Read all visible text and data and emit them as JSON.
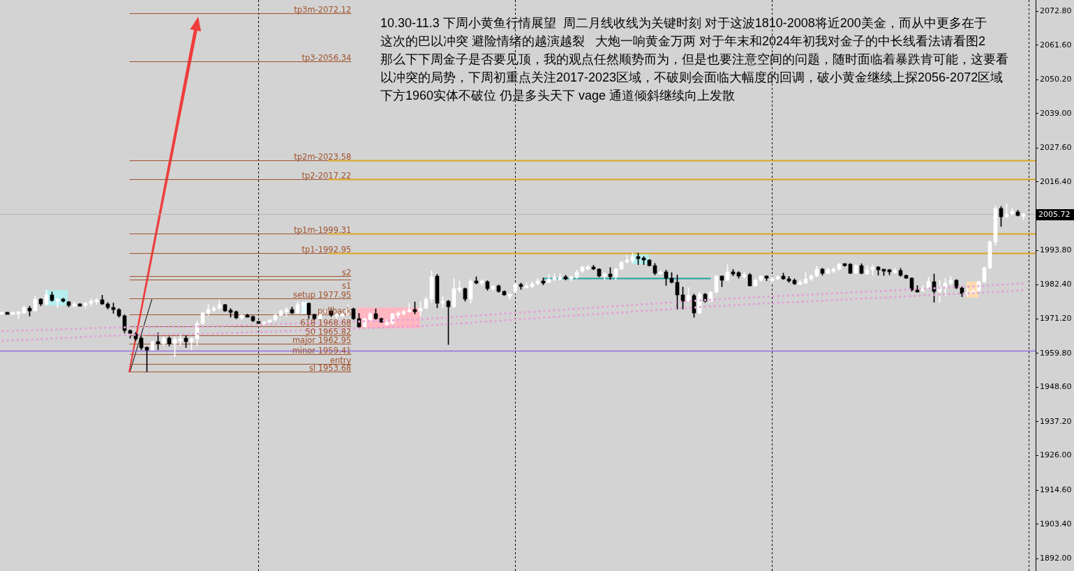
{
  "chart_data": {
    "type": "candlestick",
    "categories": [
      null,
      null,
      null,
      null,
      null,
      null,
      null,
      null,
      null,
      null,
      null,
      null,
      null,
      null,
      null,
      null,
      null,
      null,
      null,
      null,
      null,
      null,
      null,
      null,
      null,
      null,
      null,
      null,
      null,
      null,
      null,
      null,
      null,
      null,
      null,
      null,
      null,
      null,
      null,
      null,
      null,
      null,
      null,
      null,
      null,
      null,
      null,
      null,
      null,
      null,
      null,
      null,
      null,
      null,
      null,
      null,
      null,
      null,
      null,
      null,
      null,
      null,
      null,
      null,
      null,
      null,
      null,
      null,
      null,
      null,
      null,
      null,
      null,
      null,
      null,
      null,
      null,
      null,
      null,
      null,
      null,
      null,
      null,
      null,
      null,
      null,
      null,
      null,
      null,
      null,
      null,
      null,
      null,
      null,
      null,
      null,
      null,
      null,
      null,
      null,
      null,
      null,
      null,
      null,
      null,
      null,
      null,
      null,
      null,
      null,
      null,
      null,
      null,
      null,
      null,
      null,
      null,
      null,
      null,
      null,
      null,
      null,
      null,
      null,
      null,
      null,
      null,
      null,
      null,
      null,
      null,
      null,
      null,
      null,
      null,
      null,
      null,
      null,
      null,
      null,
      null,
      null,
      null,
      null,
      null,
      null,
      null,
      null,
      null,
      null,
      null,
      null,
      null,
      null,
      null,
      null,
      null,
      null,
      null,
      null,
      null,
      null,
      null,
      null,
      null,
      null,
      null,
      null,
      null,
      null,
      null,
      null,
      null,
      null,
      null,
      null,
      null,
      null,
      null,
      null,
      null,
      null,
      null,
      null
    ],
    "ohlc": [
      [
        1973.1,
        1973.4,
        1972.9,
        1973.2
      ],
      [
        1973.3,
        1973.4,
        1972.8,
        1972.9
      ],
      [
        1972.9,
        1973.4,
        1972.8,
        1973.3
      ],
      [
        1973.2,
        1973.6,
        1971.2,
        1973.4
      ],
      [
        1973.2,
        1975.5,
        1973.0,
        1975.0
      ],
      [
        1974.8,
        1975.4,
        1972.1,
        1973.9
      ],
      [
        1973.9,
        1978.6,
        1973.8,
        1977.6
      ],
      [
        1977.6,
        1977.9,
        1975.5,
        1976.2
      ],
      [
        1976.2,
        1980.7,
        1975.5,
        1979.1
      ],
      [
        1979.1,
        1980.1,
        1977.0,
        1977.3
      ],
      [
        1977.3,
        1977.9,
        1975.0,
        1977.6
      ],
      [
        1977.6,
        1978.0,
        1976.7,
        1977.0
      ],
      [
        1976.9,
        1977.0,
        1975.1,
        1975.6
      ],
      [
        1975.6,
        1976.8,
        1975.1,
        1976.0
      ],
      [
        1976.0,
        1976.3,
        1975.3,
        1975.9
      ],
      [
        1975.8,
        1976.7,
        1974.6,
        1976.3
      ],
      [
        1976.3,
        1977.8,
        1975.5,
        1977.1
      ],
      [
        1976.9,
        1978.0,
        1975.9,
        1977.5
      ],
      [
        1977.5,
        1979.0,
        1975.9,
        1976.2
      ],
      [
        1976.2,
        1976.6,
        1974.4,
        1974.9
      ],
      [
        1975.0,
        1976.4,
        1973.0,
        1974.2
      ],
      [
        1974.2,
        1974.6,
        1971.7,
        1972.1
      ],
      [
        1972.1,
        1972.6,
        1966.5,
        1967.3
      ],
      [
        1967.3,
        1967.6,
        1964.8,
        1966.4
      ],
      [
        1966.1,
        1966.7,
        1963.9,
        1964.6
      ],
      [
        1964.9,
        1965.3,
        1961.0,
        1961.7
      ],
      [
        1961.8,
        1961.9,
        1953.7,
        1961.0
      ],
      [
        1961.0,
        1963.9,
        1960.8,
        1963.6
      ],
      [
        1963.6,
        1966.6,
        1961.0,
        1962.9
      ],
      [
        1963.0,
        1965.3,
        1962.5,
        1964.8
      ],
      [
        1964.8,
        1965.3,
        1962.2,
        1963.0
      ],
      [
        1963.0,
        1965.3,
        1958.6,
        1964.4
      ],
      [
        1964.4,
        1965.7,
        1962.5,
        1964.5
      ],
      [
        1964.7,
        1965.7,
        1961.7,
        1963.6
      ],
      [
        1963.6,
        1965.0,
        1961.0,
        1964.5
      ],
      [
        1964.5,
        1970.5,
        1962.3,
        1969.6
      ],
      [
        1969.6,
        1973.4,
        1968.9,
        1973.0
      ],
      [
        1973.0,
        1975.9,
        1972.5,
        1974.2
      ],
      [
        1974.2,
        1975.5,
        1973.6,
        1974.8
      ],
      [
        1974.7,
        1977.5,
        1974.3,
        1975.8
      ],
      [
        1975.8,
        1976.0,
        1973.6,
        1973.8
      ],
      [
        1973.9,
        1974.6,
        1971.7,
        1973.5
      ],
      [
        1973.5,
        1973.8,
        1971.2,
        1971.5
      ],
      [
        1971.5,
        1972.5,
        1970.8,
        1972.3
      ],
      [
        1972.4,
        1972.8,
        1971.9,
        1972.0
      ],
      [
        1972.0,
        1972.2,
        1970.2,
        1970.5
      ],
      [
        1970.3,
        1970.4,
        1969.8,
        1969.9
      ],
      [
        1969.9,
        1970.4,
        1969.8,
        1970.0
      ],
      [
        1970.0,
        1970.9,
        1969.9,
        1970.7
      ],
      [
        1970.7,
        1972.9,
        1970.4,
        1972.4
      ],
      [
        1972.4,
        1974.2,
        1972.1,
        1973.7
      ],
      [
        1973.7,
        1975.0,
        1972.0,
        1974.3
      ],
      [
        1974.3,
        1975.1,
        1972.9,
        1973.2
      ],
      [
        1973.2,
        1976.8,
        1972.8,
        1975.8
      ],
      [
        1975.8,
        1976.8,
        1975.5,
        1976.3
      ],
      [
        1976.3,
        1976.5,
        1971.2,
        1972.6
      ],
      [
        1972.6,
        1972.8,
        1970.9,
        1971.3
      ],
      [
        1971.3,
        1973.4,
        1971.0,
        1972.8
      ],
      [
        1972.9,
        1974.2,
        1972.8,
        1973.9
      ],
      [
        1973.9,
        1974.6,
        1971.9,
        1972.3
      ],
      [
        1972.3,
        1973.1,
        1970.8,
        1972.5
      ],
      [
        1972.5,
        1973.1,
        1971.7,
        1972.6
      ],
      [
        1972.6,
        1975.9,
        1972.3,
        1974.6
      ],
      [
        1974.6,
        1974.8,
        1970.9,
        1971.2
      ],
      [
        1971.2,
        1973.0,
        1968.2,
        1968.4
      ],
      [
        1968.4,
        1971.5,
        1968.2,
        1971.2
      ],
      [
        1970.8,
        1973.2,
        1970.5,
        1972.8
      ],
      [
        1972.8,
        1974.5,
        1971.0,
        1971.2
      ],
      [
        1971.2,
        1971.5,
        1970.0,
        1970.2
      ],
      [
        1969.6,
        1971.0,
        1969.5,
        1969.7
      ],
      [
        1969.6,
        1973.0,
        1969.4,
        1972.8
      ],
      [
        1972.8,
        1973.7,
        1971.4,
        1972.9
      ],
      [
        1972.8,
        1974.2,
        1972.4,
        1973.5
      ],
      [
        1973.5,
        1976.3,
        1973.3,
        1974.3
      ],
      [
        1974.3,
        1976.8,
        1972.8,
        1973.8
      ],
      [
        1973.8,
        1976.8,
        1972.1,
        1974.7
      ],
      [
        1974.7,
        1978.3,
        1974.5,
        1977.6
      ],
      [
        1977.6,
        1987.1,
        1976.7,
        1985.0
      ],
      [
        1985.3,
        1985.9,
        1974.8,
        1976.3
      ],
      [
        1976.3,
        1978.6,
        1974.8,
        1977.0
      ],
      [
        1977.0,
        1977.3,
        1962.7,
        1975.2
      ],
      [
        1975.2,
        1984.5,
        1974.8,
        1981.1
      ],
      [
        1981.1,
        1983.7,
        1979.8,
        1981.2
      ],
      [
        1981.2,
        1981.4,
        1977.0,
        1977.6
      ],
      [
        1977.6,
        1984.2,
        1976.4,
        1983.8
      ],
      [
        1983.8,
        1985.1,
        1982.7,
        1982.9
      ],
      [
        1982.9,
        1984.2,
        1982.2,
        1983.6
      ],
      [
        1983.5,
        1983.8,
        1980.6,
        1981.2
      ],
      [
        1981.2,
        1982.2,
        1980.6,
        1981.9
      ],
      [
        1982.0,
        1982.4,
        1979.9,
        1980.3
      ],
      [
        1980.3,
        1980.5,
        1978.9,
        1979.0
      ],
      [
        1979.1,
        1979.6,
        1977.6,
        1979.2
      ],
      [
        1980.5,
        1983.0,
        1979.6,
        1982.5
      ],
      [
        1982.5,
        1983.0,
        1980.9,
        1981.8
      ],
      [
        1981.8,
        1983.2,
        1981.3,
        1981.9
      ],
      [
        1981.9,
        1983.4,
        1981.4,
        1982.8
      ],
      [
        1982.8,
        1984.5,
        1982.4,
        1983.6
      ],
      [
        1983.8,
        1984.7,
        1982.4,
        1983.1
      ],
      [
        1983.2,
        1985.8,
        1983.0,
        1984.4
      ],
      [
        1984.5,
        1986.1,
        1983.8,
        1984.6
      ],
      [
        1984.6,
        1986.1,
        1984.2,
        1984.8
      ],
      [
        1984.8,
        1985.6,
        1984.0,
        1984.7
      ],
      [
        1984.7,
        1985.4,
        1983.6,
        1984.8
      ],
      [
        1984.8,
        1987.3,
        1984.5,
        1986.8
      ],
      [
        1986.9,
        1988.6,
        1986.5,
        1988.2
      ],
      [
        1988.1,
        1988.9,
        1987.5,
        1988.2
      ],
      [
        1988.4,
        1988.9,
        1987.4,
        1987.6
      ],
      [
        1987.6,
        1987.8,
        1985.0,
        1985.4
      ],
      [
        1985.4,
        1986.4,
        1984.0,
        1985.9
      ],
      [
        1986.0,
        1988.1,
        1984.2,
        1985.1
      ],
      [
        1985.1,
        1988.0,
        1984.0,
        1987.6
      ],
      [
        1987.6,
        1990.2,
        1987.5,
        1989.9
      ],
      [
        1989.9,
        1992.2,
        1989.6,
        1990.6
      ],
      [
        1990.4,
        1992.9,
        1989.7,
        1991.8
      ],
      [
        1991.5,
        1992.9,
        1989.1,
        1991.4
      ],
      [
        1991.3,
        1991.8,
        1989.1,
        1990.6
      ],
      [
        1990.6,
        1990.8,
        1988.6,
        1988.8
      ],
      [
        1988.8,
        1989.5,
        1985.7,
        1986.3
      ],
      [
        1986.3,
        1987.1,
        1986.0,
        1986.8
      ],
      [
        1986.8,
        1987.3,
        1982.2,
        1984.7
      ],
      [
        1984.7,
        1986.5,
        1983.0,
        1983.2
      ],
      [
        1983.2,
        1985.7,
        1974.4,
        1979.2
      ],
      [
        1979.2,
        1981.7,
        1974.4,
        1977.1
      ],
      [
        1977.1,
        1981.5,
        1976.9,
        1978.8
      ],
      [
        1978.8,
        1979.4,
        1971.7,
        1973.1
      ],
      [
        1973.1,
        1979.9,
        1972.9,
        1979.4
      ],
      [
        1979.4,
        1979.6,
        1976.6,
        1977.1
      ],
      [
        1977.1,
        1980.2,
        1976.8,
        1979.9
      ],
      [
        1979.9,
        1985.5,
        1979.6,
        1985.2
      ],
      [
        1985.2,
        1985.4,
        1981.8,
        1984.0
      ],
      [
        1984.0,
        1989.1,
        1983.8,
        1986.6
      ],
      [
        1986.6,
        1987.5,
        1985.4,
        1986.5
      ],
      [
        1986.5,
        1986.8,
        1984.6,
        1985.2
      ],
      [
        1985.2,
        1986.5,
        1984.6,
        1985.8
      ],
      [
        1985.8,
        1986.2,
        1982.0,
        1982.1
      ],
      [
        1982.1,
        1984.4,
        1981.9,
        1984.0
      ],
      [
        1984.0,
        1985.4,
        1983.5,
        1985.2
      ],
      [
        1985.3,
        1985.5,
        1983.8,
        1984.6
      ],
      [
        1983.7,
        1985.0,
        1983.4,
        1984.5
      ],
      [
        1984.4,
        1985.5,
        1984.1,
        1985.1
      ],
      [
        1985.2,
        1986.3,
        1984.2,
        1984.5
      ],
      [
        1984.5,
        1985.2,
        1983.2,
        1983.8
      ],
      [
        1984.0,
        1984.4,
        1982.5,
        1982.8
      ],
      [
        1983.0,
        1984.0,
        1982.6,
        1983.1
      ],
      [
        1983.1,
        1986.6,
        1982.8,
        1984.4
      ],
      [
        1984.4,
        1985.8,
        1983.8,
        1985.4
      ],
      [
        1985.2,
        1988.6,
        1985.0,
        1987.5
      ],
      [
        1987.5,
        1987.9,
        1985.6,
        1986.2
      ],
      [
        1986.2,
        1987.9,
        1986.0,
        1987.3
      ],
      [
        1987.4,
        1988.1,
        1986.4,
        1987.5
      ],
      [
        1987.5,
        1989.6,
        1987.2,
        1989.3
      ],
      [
        1989.2,
        1989.3,
        1988.5,
        1989.1
      ],
      [
        1989.2,
        1989.5,
        1986.1,
        1986.3
      ],
      [
        1986.3,
        1989.1,
        1986.0,
        1988.8
      ],
      [
        1988.8,
        1989.4,
        1986.0,
        1986.2
      ],
      [
        1986.1,
        1988.8,
        1985.8,
        1987.3
      ],
      [
        1987.3,
        1989.0,
        1985.6,
        1988.3
      ],
      [
        1988.3,
        1988.5,
        1985.6,
        1987.3
      ],
      [
        1987.4,
        1987.5,
        1985.5,
        1987.3
      ],
      [
        1987.3,
        1987.6,
        1985.7,
        1987.2
      ],
      [
        1986.5,
        1987.9,
        1986.2,
        1987.2
      ],
      [
        1987.2,
        1987.9,
        1985.2,
        1985.6
      ],
      [
        1985.6,
        1985.7,
        1984.5,
        1984.6
      ],
      [
        1984.6,
        1984.8,
        1980.3,
        1980.6
      ],
      [
        1980.6,
        1982.2,
        1980.0,
        1980.5
      ],
      [
        1980.5,
        1982.2,
        1980.2,
        1981.4
      ],
      [
        1981.5,
        1985.0,
        1981.2,
        1983.4
      ],
      [
        1983.4,
        1986.0,
        1976.7,
        1980.2
      ],
      [
        1980.3,
        1983.8,
        1976.7,
        1981.7
      ],
      [
        1981.4,
        1984.6,
        1978.7,
        1983.0
      ],
      [
        1982.9,
        1985.1,
        1982.3,
        1984.0
      ],
      [
        1984.0,
        1984.2,
        1981.1,
        1981.4
      ],
      [
        1981.5,
        1981.8,
        1978.5,
        1979.5
      ],
      [
        1979.6,
        1981.2,
        1978.8,
        1979.8
      ],
      [
        1979.7,
        1980.8,
        1979.4,
        1980.4
      ],
      [
        1980.4,
        1983.7,
        1980.2,
        1983.4
      ],
      [
        1983.4,
        1988.3,
        1983.0,
        1988.0
      ],
      [
        1988.0,
        1997.0,
        1987.6,
        1996.5
      ],
      [
        1996.5,
        2008.4,
        1995.5,
        2007.6
      ],
      [
        2007.6,
        2008.3,
        2001.7,
        2004.9
      ],
      [
        2004.9,
        2009.2,
        2004.6,
        2005.8
      ],
      [
        2005.8,
        2007.6,
        2005.4,
        2006.8
      ],
      [
        2006.6,
        2007.1,
        2005.1,
        2005.3
      ],
      [
        2005.4,
        2006.0,
        2004.1,
        2005.72
      ]
    ],
    "colors": [
      "#ffffff",
      "#000000",
      "#ffffff",
      "#ffffff",
      "#ffffff",
      "#000000",
      "#ffffff",
      "#000000",
      "#ffffff",
      "#000000",
      "#ffffff",
      "#000000",
      "#000000",
      "#ffffff",
      "#000000",
      "#ffffff",
      "#ffffff",
      "#ffffff",
      "#000000",
      "#000000",
      "#000000",
      "#000000",
      "#000000",
      "#000000",
      "#000000",
      "#000000",
      "#000000",
      "#ffffff",
      "#000000",
      "#ffffff",
      "#000000",
      "#ffffff",
      "#ffffff",
      "#000000",
      "#ffffff",
      "#ffffff",
      "#ffffff",
      "#ffffff",
      "#ffffff",
      "#ffffff",
      "#000000",
      "#000000",
      "#000000",
      "#ffffff",
      "#000000",
      "#000000",
      "#000000",
      "#ffffff",
      "#ffffff",
      "#ffffff",
      "#ffffff",
      "#ffffff",
      "#000000",
      "#ffffff",
      "#ffffff",
      "#000000",
      "#000000",
      "#ffffff",
      "#ffffff",
      "#000000",
      "#ffffff",
      "#ffffff",
      "#ffffff",
      "#000000",
      "#000000",
      "#ffffff",
      "#ffffff",
      "#000000",
      "#000000",
      "#ffffff",
      "#ffffff",
      "#ffffff",
      "#ffffff",
      "#ffffff",
      "#000000",
      "#ffffff",
      "#ffffff",
      "#ffffff",
      "#000000",
      "#ffffff",
      "#000000",
      "#ffffff",
      "#ffffff",
      "#000000",
      "#ffffff",
      "#000000",
      "#ffffff",
      "#000000",
      "#ffffff",
      "#000000",
      "#000000",
      "#ffffff",
      "#ffffff",
      "#000000",
      "#ffffff",
      "#ffffff",
      "#ffffff",
      "#000000",
      "#ffffff",
      "#ffffff",
      "#ffffff",
      "#000000",
      "#ffffff",
      "#ffffff",
      "#ffffff",
      "#ffffff",
      "#000000",
      "#000000",
      "#ffffff",
      "#000000",
      "#ffffff",
      "#ffffff",
      "#ffffff",
      "#ffffff",
      "#000000",
      "#000000",
      "#000000",
      "#000000",
      "#ffffff",
      "#000000",
      "#000000",
      "#000000",
      "#000000",
      "#ffffff",
      "#000000",
      "#ffffff",
      "#000000",
      "#ffffff",
      "#ffffff",
      "#000000",
      "#ffffff",
      "#000000",
      "#000000",
      "#ffffff",
      "#000000",
      "#ffffff",
      "#ffffff",
      "#000000",
      "#ffffff",
      "#ffffff",
      "#000000",
      "#000000",
      "#000000",
      "#ffffff",
      "#ffffff",
      "#ffffff",
      "#ffffff",
      "#000000",
      "#ffffff",
      "#ffffff",
      "#ffffff",
      "#000000",
      "#000000",
      "#ffffff",
      "#000000",
      "#ffffff",
      "#ffffff",
      "#000000",
      "#000000",
      "#000000",
      "#ffffff",
      "#000000",
      "#000000",
      "#000000",
      "#000000",
      "#ffffff",
      "#ffffff",
      "#000000",
      "#ffffff",
      "#ffffff",
      "#ffffff",
      "#000000",
      "#000000",
      "#ffffff",
      "#ffffff",
      "#ffffff",
      "#ffffff",
      "#ffffff",
      "#ffffff",
      "#000000",
      "#ffffff",
      "#ffffff",
      "#000000",
      "#ffffff"
    ],
    "series": [
      {
        "type": "line",
        "color": "#e2a4d6",
        "line_style": "dotted",
        "values": [
          1967.1,
          1967.2,
          1967.2,
          1967.3,
          1967.3,
          1967.4,
          1967.5,
          1967.5,
          1967.6,
          1967.6,
          1967.7,
          1967.8,
          1967.8,
          1967.9,
          1967.9,
          1968.0,
          1968.1,
          1968.1,
          1968.2,
          1968.3,
          1968.3,
          1968.4,
          1968.4,
          1968.5,
          1968.5,
          1968.5,
          1968.5,
          1968.5,
          1968.6,
          1968.6,
          1968.6,
          1968.6,
          1968.6,
          1968.6,
          1968.7,
          1968.7,
          1968.7,
          1968.7,
          1968.8,
          1968.8,
          1968.9,
          1968.9,
          1969.0,
          1969.1,
          1969.1,
          1969.2,
          1969.2,
          1969.3,
          1969.4,
          1969.4,
          1969.5,
          1969.5,
          1969.6,
          1969.7,
          1969.7,
          1969.8,
          1969.9,
          1969.9,
          1970.0,
          1970.0,
          1970.1,
          1970.2,
          1970.2,
          1970.3,
          1970.3,
          1970.4,
          1970.5,
          1970.5,
          1970.6,
          1970.6,
          1970.7,
          1970.8,
          1970.8,
          1970.9,
          1970.9,
          1971.0,
          1971.1,
          1971.3,
          1971.4,
          1971.5,
          1971.6,
          1971.8,
          1971.9,
          1972.0,
          1972.1,
          1972.3,
          1972.4,
          1972.5,
          1972.6,
          1972.8,
          1972.9,
          1973.0,
          1973.1,
          1973.3,
          1973.4,
          1973.5,
          1973.6,
          1973.8,
          1973.9,
          1974.0,
          1974.1,
          1974.3,
          1974.4,
          1974.5,
          1974.6,
          1974.8,
          1974.9,
          1975.0,
          1975.1,
          1975.3,
          1975.4,
          1975.5,
          1975.6,
          1975.8,
          1975.9,
          1976.0,
          1976.1,
          1976.3,
          1976.4,
          1976.5,
          1976.6,
          1976.8,
          1976.9,
          1977.0,
          1977.1,
          1977.3,
          1977.4,
          1977.5,
          1977.6,
          1977.7,
          1977.8,
          1977.9,
          1978.0,
          1978.1,
          1978.2,
          1978.3,
          1978.4,
          1978.5,
          1978.6,
          1978.7,
          1978.8,
          1978.9,
          1978.9,
          1979.0,
          1979.1,
          1979.2,
          1979.3,
          1979.4,
          1979.5,
          1979.6,
          1979.7,
          1979.8,
          1979.9,
          1980.0,
          1980.1,
          1980.2,
          1980.2,
          1980.3,
          1980.4,
          1980.5,
          1980.6,
          1980.7,
          1980.8,
          1980.9,
          1981.0,
          1981.1,
          1981.2,
          1981.3,
          1981.4,
          1981.5,
          1981.6,
          1981.6,
          1981.7,
          1981.8,
          1981.9,
          1982.0,
          1982.1,
          1982.2,
          1982.3,
          1982.4,
          1982.5,
          1982.6,
          1982.8,
          1982.9
        ]
      },
      {
        "type": "line",
        "color": "#e2a4d6",
        "line_style": "dotted",
        "values": [
          1963.9,
          1964.0,
          1964.1,
          1964.2,
          1964.2,
          1964.3,
          1964.4,
          1964.5,
          1964.6,
          1964.7,
          1964.8,
          1964.9,
          1964.9,
          1965.0,
          1965.1,
          1965.2,
          1965.3,
          1965.4,
          1965.5,
          1965.6,
          1965.6,
          1965.7,
          1965.8,
          1965.9,
          1965.9,
          1965.9,
          1966.0,
          1966.0,
          1966.0,
          1966.0,
          1966.1,
          1966.1,
          1966.1,
          1966.1,
          1966.1,
          1966.2,
          1966.2,
          1966.2,
          1966.3,
          1966.3,
          1966.4,
          1966.5,
          1966.5,
          1966.6,
          1966.7,
          1966.8,
          1966.8,
          1966.9,
          1967.0,
          1967.0,
          1967.1,
          1967.2,
          1967.2,
          1967.3,
          1967.4,
          1967.4,
          1967.5,
          1967.6,
          1967.6,
          1967.7,
          1967.8,
          1967.8,
          1967.9,
          1968.0,
          1968.0,
          1968.1,
          1968.2,
          1968.2,
          1968.3,
          1968.4,
          1968.5,
          1968.5,
          1968.6,
          1968.7,
          1968.7,
          1968.8,
          1968.9,
          1969.1,
          1969.2,
          1969.3,
          1969.4,
          1969.6,
          1969.7,
          1969.8,
          1969.9,
          1970.1,
          1970.2,
          1970.3,
          1970.4,
          1970.6,
          1970.7,
          1970.8,
          1970.9,
          1971.1,
          1971.2,
          1971.3,
          1971.4,
          1971.6,
          1971.7,
          1971.8,
          1971.9,
          1972.1,
          1972.2,
          1972.3,
          1972.4,
          1972.6,
          1972.7,
          1972.8,
          1972.9,
          1973.1,
          1973.2,
          1973.3,
          1973.4,
          1973.6,
          1973.7,
          1973.8,
          1973.9,
          1974.1,
          1974.2,
          1974.3,
          1974.4,
          1974.6,
          1974.7,
          1974.8,
          1974.9,
          1975.1,
          1975.2,
          1975.3,
          1975.4,
          1975.5,
          1975.6,
          1975.7,
          1975.8,
          1975.9,
          1976.0,
          1976.1,
          1976.2,
          1976.3,
          1976.4,
          1976.5,
          1976.6,
          1976.7,
          1976.7,
          1976.8,
          1976.9,
          1977.0,
          1977.1,
          1977.2,
          1977.3,
          1977.4,
          1977.5,
          1977.6,
          1977.7,
          1977.8,
          1977.9,
          1978.0,
          1978.0,
          1978.1,
          1978.2,
          1978.3,
          1978.4,
          1978.5,
          1978.6,
          1978.7,
          1978.8,
          1978.9,
          1979.0,
          1979.1,
          1979.2,
          1979.3,
          1979.4,
          1979.4,
          1979.5,
          1979.6,
          1979.7,
          1979.8,
          1979.9,
          1980.0,
          1980.1,
          1980.2,
          1980.3,
          1980.4,
          1980.6,
          1980.7
        ]
      }
    ],
    "ylim": [
      1887.9,
      2076.5
    ],
    "yticks": [
      {
        "value": 2072.8,
        "label": "2072.80"
      },
      {
        "value": 2061.6,
        "label": "2061.60"
      },
      {
        "value": 2050.2,
        "label": "2050.20"
      },
      {
        "value": 2039,
        "label": "2039.00"
      },
      {
        "value": 2027.6,
        "label": "2027.60"
      },
      {
        "value": 2016.4,
        "label": "2016.40"
      },
      {
        "value": 1993.8,
        "label": "1993.80"
      },
      {
        "value": 1982.4,
        "label": "1982.40"
      },
      {
        "value": 1971.2,
        "label": "1971.20"
      },
      {
        "value": 1959.8,
        "label": "1959.80"
      },
      {
        "value": 1948.6,
        "label": "1948.60"
      },
      {
        "value": 1937.2,
        "label": "1937.20"
      },
      {
        "value": 1926,
        "label": "1926.00"
      },
      {
        "value": 1914.6,
        "label": "1914.60"
      },
      {
        "value": 1903.4,
        "label": "1903.40"
      },
      {
        "value": 1892,
        "label": "1892.00"
      }
    ],
    "tick_labels": "y",
    "ref_lines": [
      {
        "axis": "y",
        "value": 2072.12,
        "label": "tp3m-2072.12",
        "color": "#a0522d"
      },
      {
        "axis": "y",
        "value": 2056.34,
        "label": "tp3-2056.34",
        "color": "#a0522d"
      },
      {
        "axis": "y",
        "value": 2023.58,
        "label": "tp2m-2023.58",
        "color": "#a0522d"
      },
      {
        "axis": "y",
        "value": 2017.22,
        "label": "tp2-2017.22",
        "color": "#a0522d"
      },
      {
        "axis": "y",
        "value": 1999.31,
        "label": "tp1m-1999.31",
        "color": "#a0522d"
      },
      {
        "axis": "y",
        "value": 1992.95,
        "label": "tp1-1992.95",
        "color": "#a0522d"
      },
      {
        "axis": "y",
        "value": 1985.2,
        "label": "s2",
        "color": "#a0522d"
      },
      {
        "axis": "y",
        "value": 1984.2,
        "label": "s1",
        "color": "#a0522d"
      },
      {
        "axis": "y",
        "value": 1977.95,
        "label": "setup 1977.95",
        "color": "#a0522d"
      },
      {
        "axis": "y",
        "value": 1972.6,
        "label": "pullback",
        "color": "#a0522d"
      },
      {
        "axis": "y",
        "value": 1968.68,
        "label": "618 1968.68",
        "color": "#a0522d"
      },
      {
        "axis": "y",
        "value": 1965.82,
        "label": "50 1965.82",
        "color": "#a0522d"
      },
      {
        "axis": "y",
        "value": 1962.95,
        "label": "major 1962.95",
        "color": "#a0522d"
      },
      {
        "axis": "y",
        "value": 1959.41,
        "label": "minor 1959.41",
        "color": "#a0522d"
      },
      {
        "axis": "y",
        "value": 1956.3,
        "label": "entry",
        "color": "#a0522d"
      },
      {
        "axis": "y",
        "value": 1953.68,
        "label": "sl 1953.68",
        "color": "#a0522d"
      },
      {
        "axis": "y",
        "value": 2023.58,
        "color": "#daa520"
      },
      {
        "axis": "y",
        "value": 2017.22,
        "color": "#daa520"
      },
      {
        "axis": "y",
        "value": 1999.31,
        "color": "#daa520"
      },
      {
        "axis": "y",
        "value": 1992.95,
        "color": "#daa520"
      },
      {
        "axis": "y",
        "value": 1960.6,
        "color": "#9370db"
      },
      {
        "axis": "y",
        "value": 1984.7,
        "color": "#20a0a0"
      },
      {
        "axis": "y",
        "value": 2005.72,
        "label": "2005.72",
        "color": "#b4b4b4"
      }
    ],
    "annotations": [
      "10.30-11.3 下周小黄鱼行情展望  周二月线收线为关键时刻 对于这波1810-2008将近200美金，而从中更多在于",
      "这次的巴以冲突 避险情绪的越演越裂   大炮一响黄金万两 对于年末和2024年初我对金子的中长线看法请看图2",
      "那么下下周金子是否要见顶，我的观点任然顺势而为，但是也要注意空间的问题，随时面临着暴跌肯可能，这要看",
      "以冲突的局势，下周初重点关注2017-2023区域，不破则会面临大幅度的回调，破小黄金继续上探2056-2072区域",
      "下方1960实体不破位 仍是多头天下 vage 通道倾斜继续向上发散"
    ]
  }
}
